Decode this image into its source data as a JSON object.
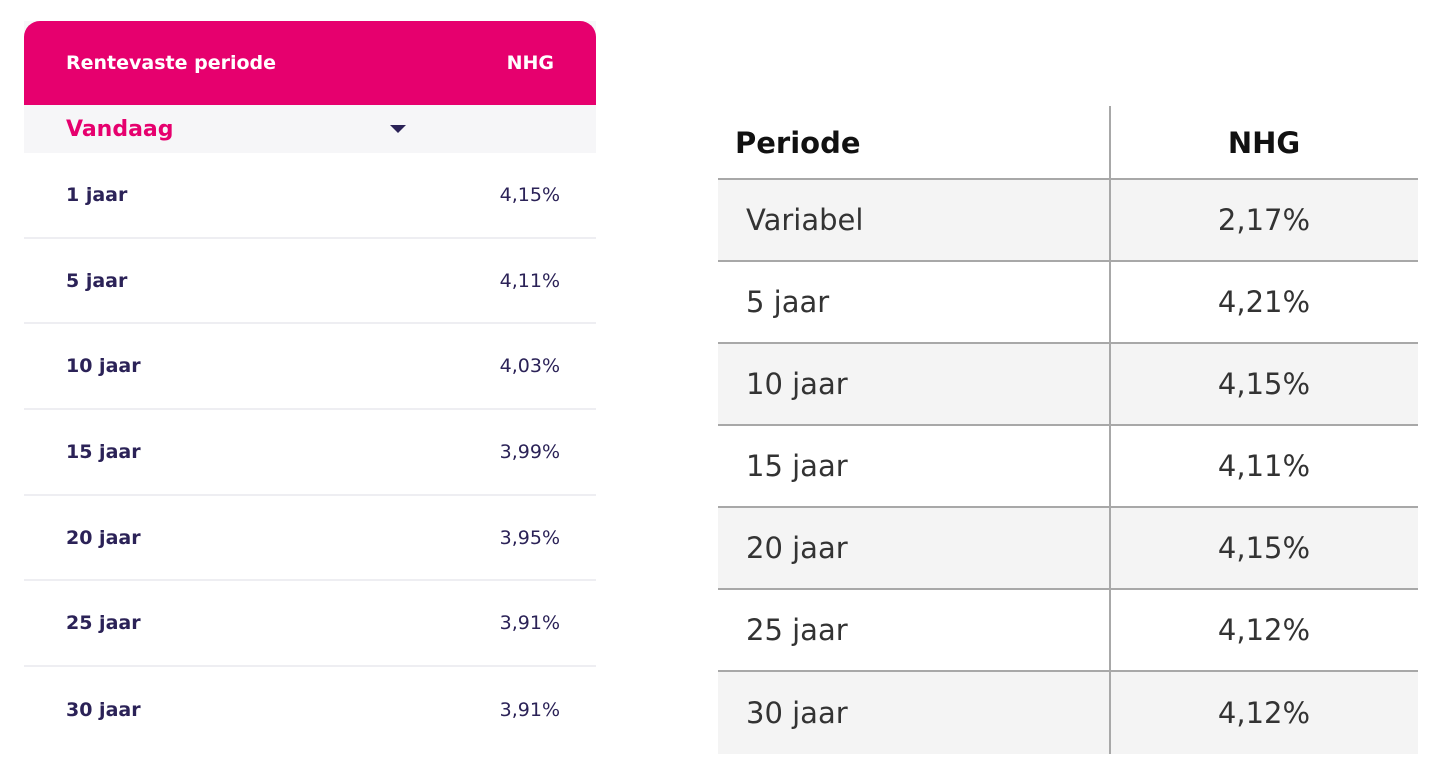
{
  "left_table": {
    "header": {
      "period": "Rentevaste periode",
      "nhg": "NHG"
    },
    "select": {
      "value": "Vandaag"
    },
    "rows": [
      {
        "period": "1 jaar",
        "rate": "4,15%"
      },
      {
        "period": "5 jaar",
        "rate": "4,11%"
      },
      {
        "period": "10 jaar",
        "rate": "4,03%"
      },
      {
        "period": "15 jaar",
        "rate": "3,99%"
      },
      {
        "period": "20 jaar",
        "rate": "3,95%"
      },
      {
        "period": "25 jaar",
        "rate": "3,91%"
      },
      {
        "period": "30 jaar",
        "rate": "3,91%"
      }
    ],
    "colors": {
      "accent": "#e6006e",
      "text": "#2b2257"
    }
  },
  "right_table": {
    "header": {
      "period": "Periode",
      "nhg": "NHG"
    },
    "rows": [
      {
        "period": "Variabel",
        "rate": "2,17%"
      },
      {
        "period": "5 jaar",
        "rate": "4,21%"
      },
      {
        "period": "10 jaar",
        "rate": "4,15%"
      },
      {
        "period": "15 jaar",
        "rate": "4,11%"
      },
      {
        "period": "20 jaar",
        "rate": "4,15%"
      },
      {
        "period": "25 jaar",
        "rate": "4,12%"
      },
      {
        "period": "30 jaar",
        "rate": "4,12%"
      }
    ]
  }
}
